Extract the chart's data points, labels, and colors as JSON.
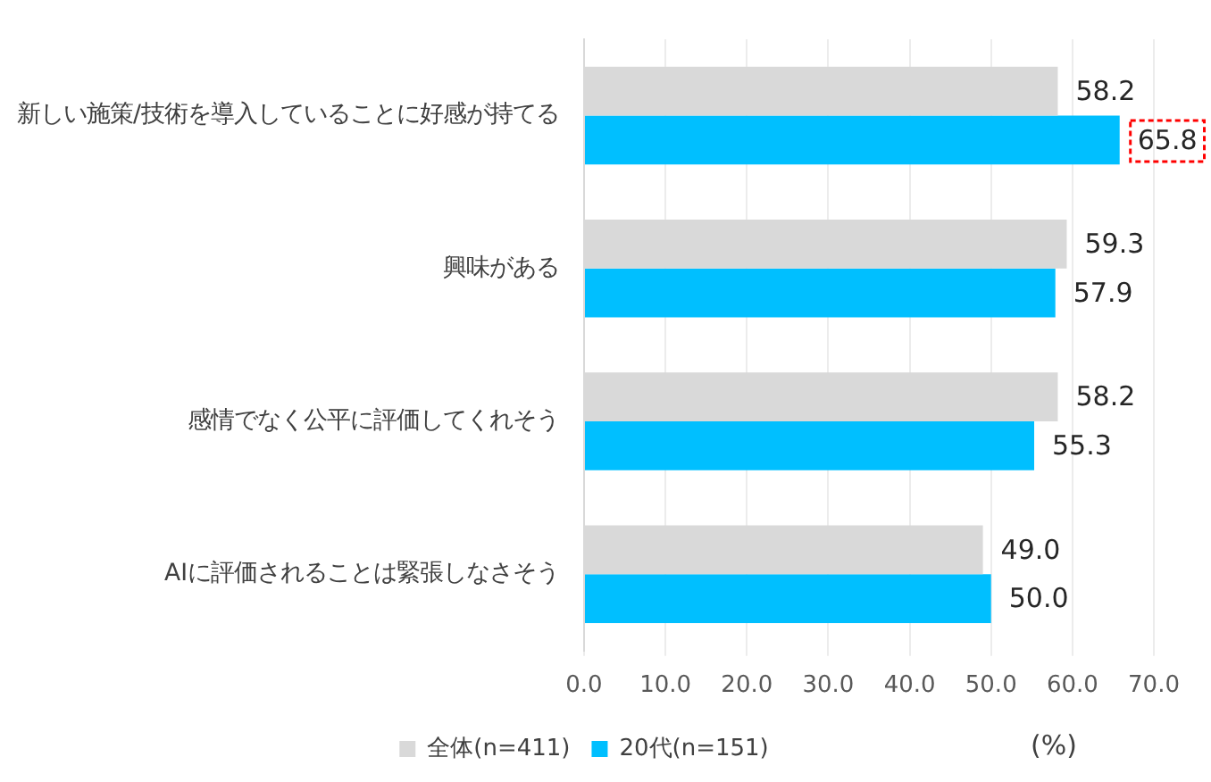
{
  "chart_data": {
    "type": "bar",
    "orientation": "horizontal",
    "categories": [
      "新しい施策/技術を導入していることに好感が持てる",
      "興味がある",
      "感情でなく公平に評価してくれそう",
      "AIに評価されることは緊張しなさそう"
    ],
    "series": [
      {
        "name": "全体(n=411)",
        "color": "#d9d9d9",
        "values": [
          58.2,
          59.3,
          58.2,
          49.0
        ],
        "value_labels": [
          "58.2",
          "59.3",
          "58.2",
          "49.0"
        ]
      },
      {
        "name": "20代(n=151)",
        "color": "#00bfff",
        "values": [
          65.8,
          57.9,
          55.3,
          50.0
        ],
        "value_labels": [
          null,
          "57.9",
          "55.3",
          "50.0"
        ]
      }
    ],
    "xlabel": "(%)",
    "xlim": [
      0,
      70
    ],
    "xticks": [
      {
        "value": 0,
        "label": "0.0"
      },
      {
        "value": 10,
        "label": "10.0"
      },
      {
        "value": 20,
        "label": "20.0"
      },
      {
        "value": 30,
        "label": "30.0"
      },
      {
        "value": 40,
        "label": "40.0"
      },
      {
        "value": 50,
        "label": "50.0"
      },
      {
        "value": 60,
        "label": "60.0"
      },
      {
        "value": 70,
        "label": "70.0"
      }
    ],
    "grid": "x",
    "legend": "bottom",
    "annotations": [
      {
        "text": "65.8",
        "x": 65.8,
        "y": "新しい施策/技術を導入していることに好感が持てる"
      }
    ]
  }
}
